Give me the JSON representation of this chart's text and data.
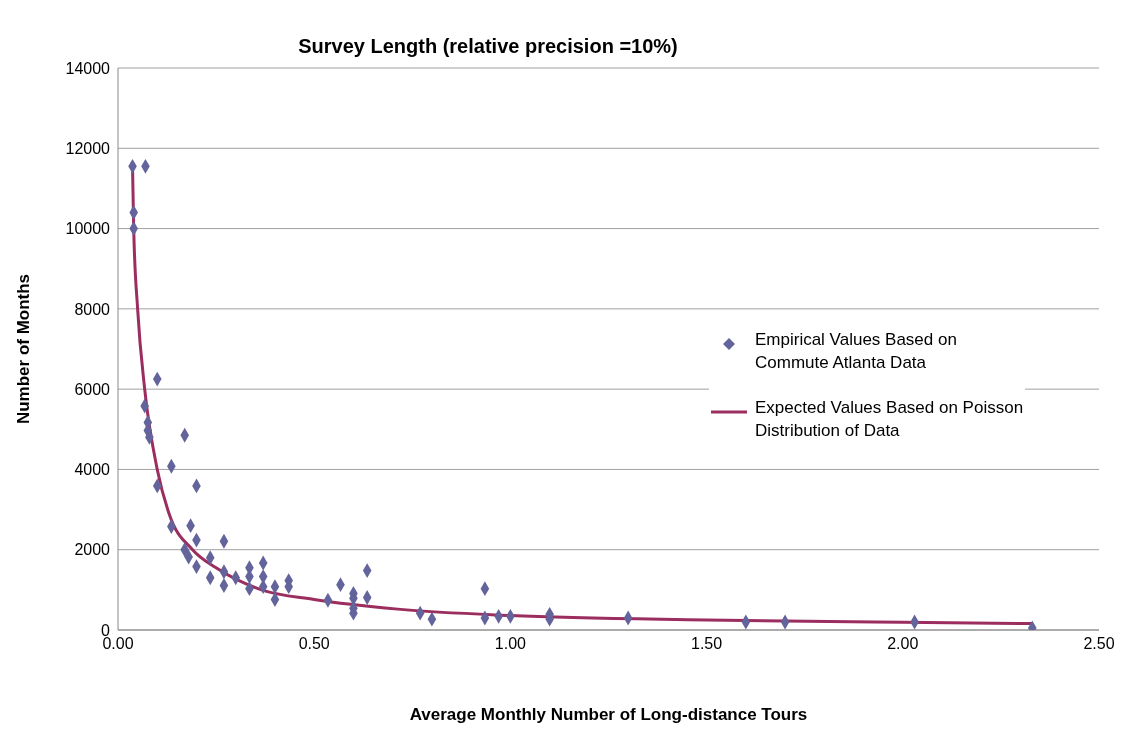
{
  "chart_data": {
    "type": "scatter",
    "title": "Survey Length (relative precision =10%)",
    "xlabel": "Average Monthly Number of Long-distance Tours",
    "ylabel": "Number of Months",
    "xlim": [
      0,
      2.5
    ],
    "xticks": [
      {
        "value": 0,
        "label": "0.00"
      },
      {
        "value": 0.5,
        "label": "0.50"
      },
      {
        "value": 1,
        "label": "1.00"
      },
      {
        "value": 1.5,
        "label": "1.50"
      },
      {
        "value": 2,
        "label": "2.00"
      },
      {
        "value": 2.5,
        "label": "2.50"
      }
    ],
    "ylim": [
      0,
      14000
    ],
    "yticks": [
      0,
      2000,
      4000,
      6000,
      8000,
      10000,
      12000,
      14000
    ],
    "grid": "y",
    "legend": "right",
    "series": [
      {
        "name": "Empirical Values Based on Commute Atlanta Data",
        "type": "scatter",
        "marker": "diamond",
        "color": "#64649c",
        "x": [
          0.037,
          0.07,
          0.04,
          0.04,
          0.1,
          0.068,
          0.076,
          0.076,
          0.08,
          0.17,
          0.136,
          0.1,
          0.2,
          0.136,
          0.185,
          0.2,
          0.27,
          0.17,
          0.18,
          0.2,
          0.235,
          0.235,
          0.27,
          0.27,
          0.3,
          0.335,
          0.37,
          0.335,
          0.335,
          0.37,
          0.37,
          0.4,
          0.4,
          0.435,
          0.435,
          0.535,
          0.567,
          0.6,
          0.6,
          0.6,
          0.6,
          0.635,
          0.635,
          0.77,
          0.8,
          0.935,
          0.935,
          0.97,
          1.0,
          1.1,
          1.1,
          1.3,
          1.6,
          1.7,
          2.03,
          2.33
        ],
        "values": [
          11550,
          11550,
          10400,
          10000,
          6250,
          5580,
          5170,
          4970,
          4800,
          4850,
          4080,
          3590,
          3590,
          2580,
          2600,
          2240,
          2210,
          2000,
          1820,
          1580,
          1800,
          1300,
          1450,
          1110,
          1300,
          1550,
          1670,
          1330,
          1030,
          1330,
          1080,
          1080,
          760,
          1230,
          1080,
          740,
          1130,
          910,
          790,
          540,
          420,
          1480,
          810,
          420,
          270,
          1030,
          300,
          340,
          340,
          390,
          270,
          300,
          200,
          200,
          200,
          50
        ]
      },
      {
        "name": "Expected Values Based on Poisson Distribution of Data",
        "type": "line",
        "marker": "none",
        "line_style": "solid",
        "color": "#9b2d5f",
        "x": [
          0.037,
          0.04,
          0.05,
          0.068,
          0.1,
          0.13,
          0.19,
          0.25,
          0.366,
          0.5,
          0.713,
          1.0,
          1.5,
          2.0,
          2.33
        ],
        "values": [
          11550,
          10000,
          8000,
          6000,
          4000,
          2900,
          2000,
          1550,
          1000,
          760,
          520,
          360,
          250,
          190,
          160
        ]
      }
    ]
  }
}
